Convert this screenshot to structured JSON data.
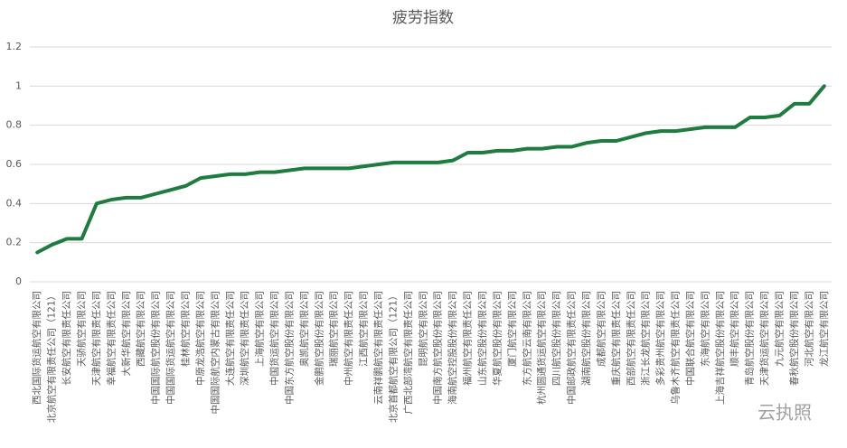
{
  "chart_data": {
    "type": "line",
    "title": "疲劳指数",
    "categories": [
      "西北国际货运航空有限公司",
      "北京航空有限责任公司（121）",
      "长安航空有限责任公司",
      "天骄航空有限公司",
      "天津航空有限责任公司",
      "幸福航空有限责任公司",
      "大新华航空有限公司",
      "西藏航空有限公司",
      "中国国际航空股份有限公司",
      "中国国际货运航空有限公司",
      "桂林航空有限公司",
      "中原龙浩航空有限公司",
      "中国国际航空内蒙古有限公司",
      "大连航空有限责任公司",
      "深圳航空有限责任公司",
      "上海航空有限公司",
      "中国货运航空有限公司",
      "中国东方航空股份有限公司",
      "奥凯航空有限公司",
      "金鹏航空股份有限公司",
      "瑞丽航空有限公司",
      "中州航空有限责任公司",
      "江西航空有限公司",
      "云南祥鹏航空有限责任公司",
      "北京首都航空有限公司（121）",
      "广西北部湾航空有限责任公司",
      "昆明航空有限公司",
      "中国南方航空股份有限公司",
      "海南航空控股股份有限公司",
      "福州航空有限责任公司",
      "山东航空股份有限公司",
      "华夏航空股份有限公司",
      "厦门航空有限公司",
      "东方航空云南有限公司",
      "杭州圆通货运航空有限公司",
      "四川航空股份有限公司",
      "中国邮政航空有限责任公司",
      "湖南航空股份有限公司",
      "成都航空有限公司",
      "重庆航空有限责任公司",
      "西部航空有限责任公司",
      "浙江长龙航空有限公司",
      "多彩贵州航空有限公司",
      "乌鲁木齐航空有限责任公司",
      "中国联合航空有限公司",
      "东海航空有限公司",
      "上海吉祥航空股份有限公司",
      "顺丰航空有限公司",
      "青岛航空股份有限公司",
      "天津货运航空有限公司",
      "九元航空有限公司",
      "春秋航空股份有限公司",
      "河北航空有限公司",
      "龙江航空有限公司"
    ],
    "values": [
      0.15,
      0.19,
      0.22,
      0.22,
      0.4,
      0.42,
      0.43,
      0.43,
      0.45,
      0.47,
      0.49,
      0.53,
      0.54,
      0.55,
      0.55,
      0.56,
      0.56,
      0.57,
      0.58,
      0.58,
      0.58,
      0.58,
      0.59,
      0.6,
      0.61,
      0.61,
      0.61,
      0.61,
      0.62,
      0.66,
      0.66,
      0.67,
      0.67,
      0.68,
      0.68,
      0.69,
      0.69,
      0.71,
      0.72,
      0.72,
      0.74,
      0.76,
      0.77,
      0.77,
      0.78,
      0.79,
      0.79,
      0.79,
      0.84,
      0.84,
      0.85,
      0.91,
      0.91,
      1.0
    ],
    "color": "#1e7d3e",
    "ylim": [
      0,
      1.2
    ],
    "yticks": [
      0,
      0.2,
      0.4,
      0.6,
      0.8,
      1,
      1.2
    ],
    "grid": true,
    "watermark": "云执照"
  }
}
